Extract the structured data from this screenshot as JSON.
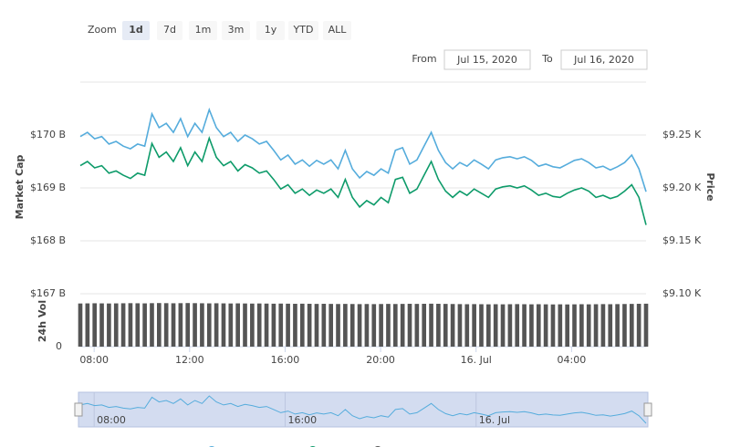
{
  "zoom": {
    "label": "Zoom",
    "buttons": [
      "1d",
      "7d",
      "1m",
      "3m",
      "1y",
      "YTD",
      "ALL"
    ],
    "selected": 0
  },
  "range": {
    "from_label": "From",
    "from": "Jul 15, 2020",
    "to_label": "To",
    "to": "Jul 16, 2020"
  },
  "chart_data": {
    "type": "line",
    "y_label": "Market Cap",
    "y2_label": "Price",
    "y3_label": "24h Vol",
    "x": [
      7.42,
      7.72,
      8.02,
      8.32,
      8.62,
      8.92,
      9.22,
      9.52,
      9.82,
      10.12,
      10.42,
      10.72,
      11.02,
      11.32,
      11.62,
      11.92,
      12.22,
      12.52,
      12.82,
      13.12,
      13.42,
      13.72,
      14.02,
      14.32,
      14.62,
      14.92,
      15.22,
      15.52,
      15.82,
      16.12,
      16.42,
      16.72,
      17.02,
      17.32,
      17.62,
      17.92,
      18.22,
      18.52,
      18.82,
      19.12,
      19.42,
      19.72,
      20.02,
      20.32,
      20.62,
      20.92,
      21.22,
      21.52,
      21.82,
      22.12,
      22.42,
      22.72,
      23.02,
      23.32,
      23.62,
      23.92,
      24.22,
      24.52,
      24.82,
      25.12,
      25.42,
      25.72,
      26.02,
      26.32,
      26.62,
      26.92,
      27.22,
      27.52,
      27.82,
      28.12,
      28.42,
      28.72,
      29.02,
      29.32,
      29.62,
      29.92,
      30.22,
      30.52,
      30.82,
      31.12
    ],
    "xlim": [
      7.42,
      31.12
    ],
    "xticks": [
      {
        "value": 8,
        "label": "08:00"
      },
      {
        "value": 12,
        "label": "12:00"
      },
      {
        "value": 16,
        "label": "16:00"
      },
      {
        "value": 20,
        "label": "20:00"
      },
      {
        "value": 24,
        "label": "16. Jul"
      },
      {
        "value": 28,
        "label": "04:00"
      }
    ],
    "ylim": [
      167,
      171
    ],
    "yticks": [
      {
        "value": 167,
        "label": "$167 B"
      },
      {
        "value": 168,
        "label": "$168 B"
      },
      {
        "value": 169,
        "label": "$169 B"
      },
      {
        "value": 170,
        "label": "$170 B"
      }
    ],
    "y2lim": [
      9.1,
      9.3
    ],
    "y2ticks": [
      {
        "value": 9.1,
        "label": "$9.10 K"
      },
      {
        "value": 9.15,
        "label": "$9.15 K"
      },
      {
        "value": 9.2,
        "label": "$9.20 K"
      },
      {
        "value": 9.25,
        "label": "$9.25 K"
      }
    ],
    "y3lim": [
      0,
      50
    ],
    "y3ticks": [
      0
    ],
    "grid": true,
    "series": [
      {
        "name": "Market Cap",
        "color": "#55acdc",
        "axis": "y",
        "type": "line",
        "values": [
          169.97,
          170.05,
          169.93,
          169.97,
          169.83,
          169.88,
          169.79,
          169.74,
          169.83,
          169.79,
          170.4,
          170.14,
          170.22,
          170.05,
          170.31,
          169.97,
          170.22,
          170.05,
          170.48,
          170.14,
          169.97,
          170.05,
          169.88,
          170.0,
          169.93,
          169.83,
          169.88,
          169.71,
          169.53,
          169.62,
          169.45,
          169.53,
          169.41,
          169.52,
          169.45,
          169.53,
          169.36,
          169.71,
          169.36,
          169.19,
          169.31,
          169.24,
          169.36,
          169.28,
          169.71,
          169.76,
          169.45,
          169.53,
          169.79,
          170.05,
          169.71,
          169.48,
          169.36,
          169.48,
          169.41,
          169.53,
          169.45,
          169.36,
          169.53,
          169.57,
          169.59,
          169.55,
          169.59,
          169.52,
          169.41,
          169.45,
          169.4,
          169.38,
          169.45,
          169.52,
          169.55,
          169.48,
          169.38,
          169.41,
          169.34,
          169.4,
          169.48,
          169.62,
          169.36,
          168.93
        ]
      },
      {
        "name": "Price",
        "color": "#0e9b6a",
        "axis": "y2",
        "type": "line",
        "values": [
          9.221,
          9.225,
          9.219,
          9.221,
          9.214,
          9.216,
          9.212,
          9.209,
          9.214,
          9.212,
          9.242,
          9.229,
          9.234,
          9.225,
          9.238,
          9.221,
          9.234,
          9.225,
          9.247,
          9.229,
          9.221,
          9.225,
          9.216,
          9.222,
          9.219,
          9.214,
          9.216,
          9.208,
          9.199,
          9.203,
          9.195,
          9.199,
          9.193,
          9.198,
          9.195,
          9.199,
          9.191,
          9.208,
          9.191,
          9.182,
          9.188,
          9.184,
          9.191,
          9.186,
          9.208,
          9.21,
          9.195,
          9.199,
          9.212,
          9.225,
          9.208,
          9.197,
          9.191,
          9.197,
          9.193,
          9.199,
          9.195,
          9.191,
          9.199,
          9.201,
          9.202,
          9.2,
          9.202,
          9.198,
          9.193,
          9.195,
          9.192,
          9.191,
          9.195,
          9.198,
          9.2,
          9.197,
          9.191,
          9.193,
          9.19,
          9.192,
          9.197,
          9.203,
          9.191,
          9.165
        ]
      },
      {
        "name": "24h Vol",
        "color": "#555555",
        "axis": "y3",
        "type": "bar",
        "values": [
          40.8,
          40.9,
          41.0,
          40.9,
          40.8,
          40.9,
          41.0,
          41.1,
          41.0,
          40.9,
          41.1,
          41.2,
          41.1,
          41.0,
          41.1,
          41.2,
          41.1,
          41.0,
          40.9,
          41.0,
          40.9,
          40.8,
          40.9,
          40.8,
          40.7,
          40.8,
          40.7,
          40.6,
          40.7,
          40.6,
          40.5,
          40.6,
          40.5,
          40.4,
          40.5,
          40.4,
          40.3,
          40.4,
          40.3,
          40.2,
          40.3,
          40.2,
          40.3,
          40.4,
          40.3,
          40.4,
          40.5,
          40.4,
          40.5,
          40.6,
          40.5,
          40.4,
          40.3,
          40.2,
          40.1,
          40.2,
          40.1,
          40.0,
          40.1,
          40.0,
          40.1,
          40.2,
          40.1,
          40.0,
          40.1,
          40.0,
          39.9,
          40.0,
          39.9,
          40.0,
          40.1,
          40.0,
          40.1,
          40.2,
          40.1,
          40.2,
          40.3,
          40.4,
          40.5,
          40.6
        ]
      }
    ]
  }
}
